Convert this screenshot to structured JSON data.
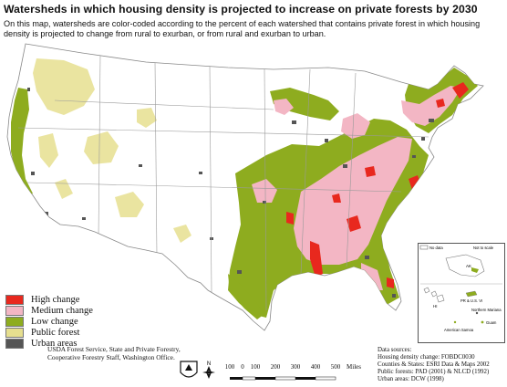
{
  "title": "Watersheds in which housing density is projected to increase on private forests by 2030",
  "subtitle": "On this map, watersheds are color-coded according to the percent of each watershed that contains private forest in which housing density is projected to change from rural to exurban, or from rural and exurban to urban.",
  "legend": [
    {
      "label": "High change",
      "color": "#e8281e"
    },
    {
      "label": "Medium change",
      "color": "#f3b6c4"
    },
    {
      "label": "Low change",
      "color": "#8eac1f"
    },
    {
      "label": "Public forest",
      "color": "#e6df8f"
    },
    {
      "label": "Urban areas",
      "color": "#555555"
    }
  ],
  "credit": {
    "line1": "USDA Forest Service, State and Private Forestry,",
    "line2": "Cooperative Forestry Staff, Washington Office."
  },
  "logo_text": "FS",
  "north_label": "N",
  "scale": {
    "ticks": [
      "100",
      "0",
      "100",
      "200",
      "300",
      "400",
      "500"
    ],
    "unit": "Miles"
  },
  "sources": {
    "heading": "Data sources:",
    "lines": [
      "Housing density change: FOBDC0030",
      "Counties & States: ESRI Data & Maps 2002",
      "Public forests: PAD (2001) & NLCD (1992)",
      "Urban areas: DCW (1998)"
    ]
  },
  "inset": {
    "no_data": "No data",
    "not_to_scale": "Not to scale",
    "labels": [
      "AK",
      "HI",
      "PR & U.S. VI",
      "Northern Mariana",
      "Guam",
      "American Samoa"
    ]
  },
  "colors": {
    "high": "#e8281e",
    "medium": "#f3b6c4",
    "low": "#8eac1f",
    "public": "#e6df8f",
    "urban": "#555555",
    "boundary": "#9a9a9a"
  }
}
